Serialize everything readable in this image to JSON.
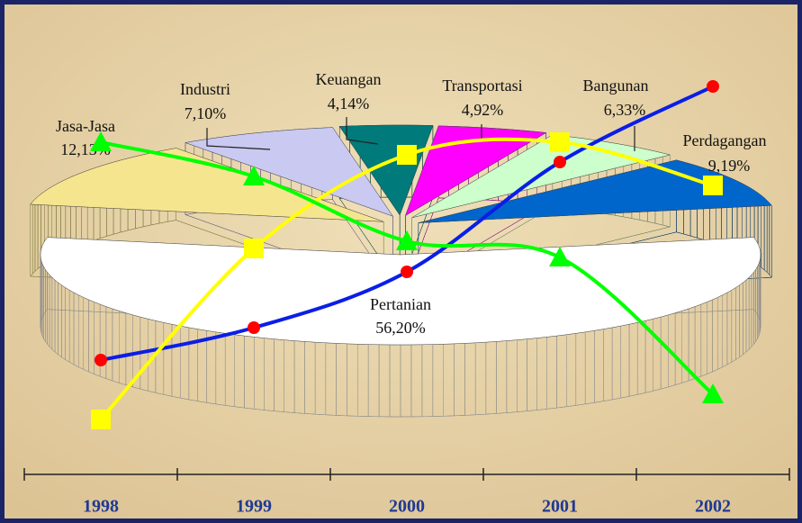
{
  "chart_data": [
    {
      "type": "pie3d",
      "categories": [
        "Pertanian",
        "Jasa-Jasa",
        "Industri",
        "Keuangan",
        "Transportasi",
        "Bangunan",
        "Perdagangan"
      ],
      "values": [
        56.2,
        12.13,
        7.1,
        4.14,
        4.92,
        6.33,
        9.19
      ],
      "value_labels": [
        "56,20%",
        "12,13%",
        "7,10%",
        "4,14%",
        "4,92%",
        "6,33%",
        "9,19%"
      ],
      "colors": [
        "#ffffff",
        "#f6e58f",
        "#c9c9f2",
        "#007a7a",
        "#ff00ff",
        "#ccffcc",
        "#0066cc"
      ],
      "side_colors": [
        "#8c8c8c",
        "#7a7a3a",
        "#5f5f80",
        "#003d3d",
        "#800080",
        "#6a806a",
        "#003366"
      ]
    },
    {
      "type": "line",
      "categories": [
        "1998",
        "1999",
        "2000",
        "2001",
        "2002"
      ],
      "ylim": [
        0,
        100
      ],
      "series": [
        {
          "color": "#0a1ee6",
          "marker": "circle",
          "marker_color": "#ff0000",
          "values": [
            20,
            29,
            44.5,
            75,
            96
          ]
        },
        {
          "color": "#ffff00",
          "marker": "square",
          "marker_color": "#ffff00",
          "values": [
            3.5,
            51,
            77,
            80.5,
            68.5
          ]
        },
        {
          "color": "#00ff00",
          "marker": "triangle",
          "marker_color": "#00ff00",
          "values": [
            80.5,
            71,
            53,
            48.5,
            10.5
          ]
        }
      ]
    }
  ]
}
